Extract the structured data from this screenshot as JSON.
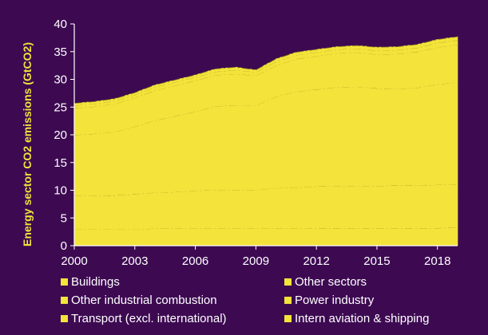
{
  "chart_data": {
    "type": "area",
    "stacked": true,
    "ylabel": "Energy sector CO2 emissions (GtCO2)",
    "ylim": [
      0,
      40
    ],
    "yticks": [
      0,
      5,
      10,
      15,
      20,
      25,
      30,
      35,
      40
    ],
    "xlim": [
      2000,
      2019
    ],
    "xticks": [
      2000,
      2003,
      2006,
      2009,
      2012,
      2015,
      2018
    ],
    "x": [
      2000,
      2001,
      2002,
      2003,
      2004,
      2005,
      2006,
      2007,
      2008,
      2009,
      2010,
      2011,
      2012,
      2013,
      2014,
      2015,
      2016,
      2017,
      2018,
      2019
    ],
    "series": [
      {
        "name": "Buildings",
        "color": "#f3e33a",
        "values": [
          3.0,
          3.0,
          3.0,
          3.0,
          3.1,
          3.1,
          3.1,
          3.1,
          3.1,
          3.1,
          3.1,
          3.1,
          3.2,
          3.2,
          3.2,
          3.2,
          3.2,
          3.2,
          3.2,
          3.3
        ]
      },
      {
        "name": "Other sectors",
        "color": "#f3e33a",
        "values": [
          6.0,
          6.0,
          6.1,
          6.3,
          6.5,
          6.6,
          6.8,
          7.0,
          7.0,
          7.0,
          7.3,
          7.4,
          7.5,
          7.6,
          7.6,
          7.6,
          7.7,
          7.7,
          7.8,
          7.8
        ]
      },
      {
        "name": "Other industrial combustion",
        "color": "#f3e33a",
        "values": [
          11.0,
          11.2,
          11.4,
          12.2,
          13.0,
          13.7,
          14.3,
          15.1,
          15.2,
          15.2,
          16.5,
          17.3,
          17.5,
          17.8,
          17.9,
          17.6,
          17.4,
          17.6,
          18.1,
          18.4
        ]
      },
      {
        "name": "Power industry",
        "color": "#f3e33a",
        "values": [
          4.8,
          4.9,
          5.1,
          5.2,
          5.4,
          5.5,
          5.6,
          5.6,
          5.7,
          5.4,
          5.6,
          5.9,
          6.0,
          6.1,
          6.2,
          6.1,
          6.3,
          6.5,
          6.7,
          6.8
        ]
      },
      {
        "name": "Transport (excl. international)",
        "color": "#f3e33a",
        "values": [
          0.5,
          0.5,
          0.5,
          0.5,
          0.6,
          0.6,
          0.6,
          0.6,
          0.7,
          0.6,
          0.7,
          0.7,
          0.7,
          0.7,
          0.7,
          0.7,
          0.7,
          0.7,
          0.8,
          0.8
        ]
      },
      {
        "name": "Intern aviation & shipping",
        "color": "#f3e33a",
        "values": [
          0.4,
          0.4,
          0.4,
          0.4,
          0.4,
          0.4,
          0.4,
          0.5,
          0.5,
          0.4,
          0.5,
          0.5,
          0.5,
          0.5,
          0.5,
          0.6,
          0.6,
          0.6,
          0.6,
          0.6
        ]
      }
    ],
    "legend": {
      "placement": "bottom",
      "items": [
        "Buildings",
        "Other sectors",
        "Other industrial combustion",
        "Power industry",
        "Transport (excl. international)",
        "Intern aviation & shipping"
      ]
    },
    "grid": false,
    "colors": {
      "background": "#3d0a52",
      "fill": "#f3e33a",
      "tick_text": "#ffffff",
      "axis": "#ffffff",
      "label_text": "#f3e33a"
    }
  }
}
